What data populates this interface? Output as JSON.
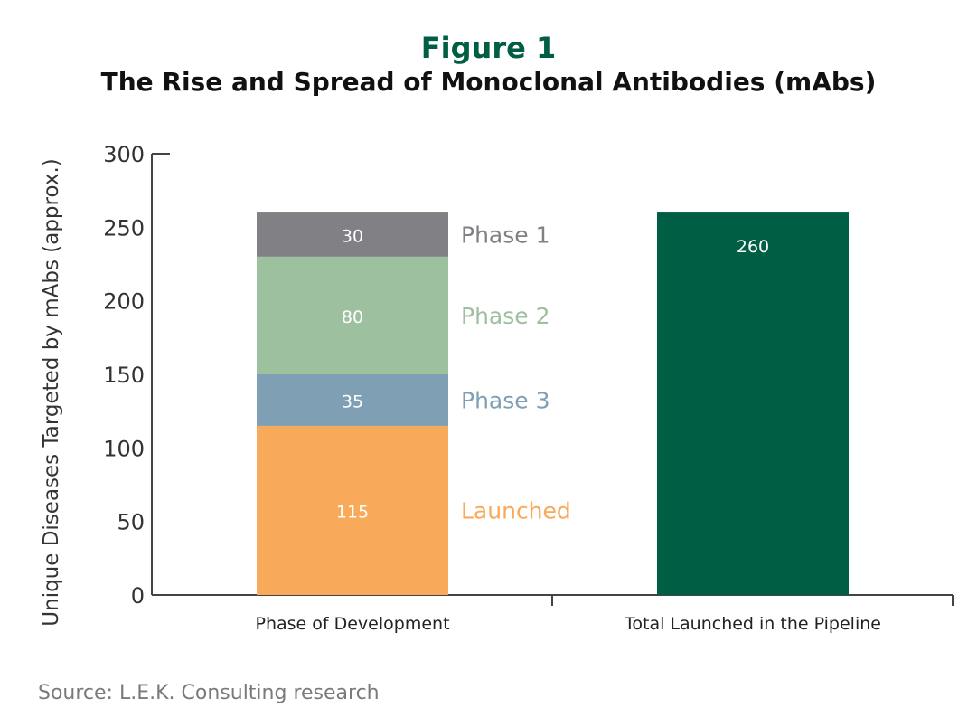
{
  "figure_title": "Figure 1",
  "figure_subtitle": "The Rise and Spread of Monoclonal Antibodies (mAbs)",
  "source": "Source: L.E.K. Consulting research",
  "chart_data": {
    "type": "bar",
    "stacked": true,
    "ylabel": "Unique Diseases Targeted by mAbs (approx.)",
    "ylim": [
      0,
      300
    ],
    "yticks": [
      0,
      50,
      100,
      150,
      200,
      250,
      300
    ],
    "grid": false,
    "categories": [
      "Phase of Development",
      "Total Launched in the Pipeline"
    ],
    "series": [
      {
        "name": "Launched",
        "values": [
          115,
          null
        ],
        "color": "#f9a95a"
      },
      {
        "name": "Phase 3",
        "values": [
          35,
          null
        ],
        "color": "#7f9fb5"
      },
      {
        "name": "Phase 2",
        "values": [
          80,
          null
        ],
        "color": "#9dc09e"
      },
      {
        "name": "Phase 1",
        "values": [
          30,
          null
        ],
        "color": "#808085"
      },
      {
        "name": "",
        "values": [
          null,
          260
        ],
        "color": "#005e44"
      }
    ],
    "legend_placement": "inline right of first bar"
  }
}
